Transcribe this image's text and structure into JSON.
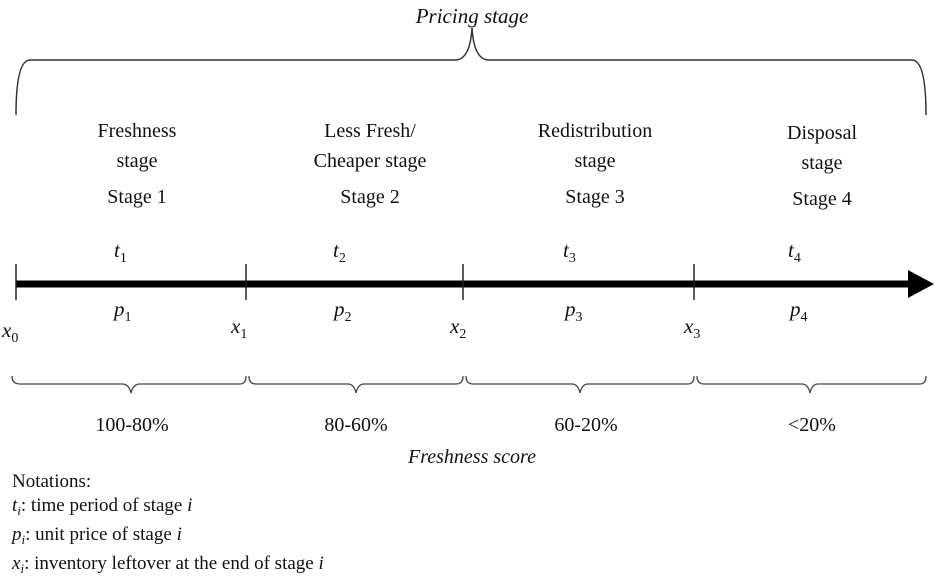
{
  "title": "Pricing stage",
  "stages": [
    {
      "name_line1": "Freshness",
      "name_line2": "stage",
      "label": "Stage  1",
      "t": "t",
      "p": "p",
      "score": "100-80%"
    },
    {
      "name_line1": "Less Fresh/",
      "name_line2": "Cheaper stage",
      "label": "Stage  2",
      "t": "t",
      "p": "p",
      "score": "80-60%"
    },
    {
      "name_line1": "Redistribution",
      "name_line2": "stage",
      "label": "Stage  3",
      "t": "t",
      "p": "p",
      "score": "60-20%"
    },
    {
      "name_line1": "Disposal",
      "name_line2": "stage",
      "label": "Stage  4",
      "t": "t",
      "p": "p",
      "score": "<20%"
    }
  ],
  "x_markers": [
    "x",
    "x",
    "x",
    "x"
  ],
  "freshness_label": "Freshness score",
  "notations": {
    "heading": "Notations:",
    "t_desc": ": time  period of stage ",
    "p_desc": ": unit  price  of stage ",
    "x_desc": ": inventory  leftover  at the end of stage ",
    "i": "i"
  }
}
